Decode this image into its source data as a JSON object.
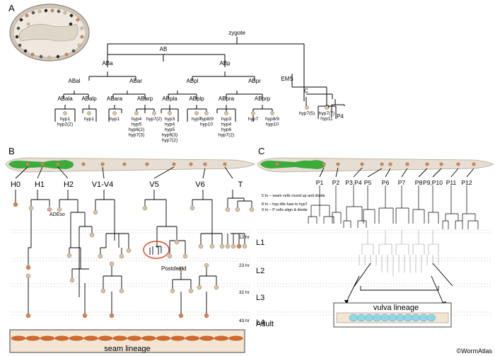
{
  "panels": {
    "a": "A",
    "b": "B",
    "c": "C"
  },
  "tree_a": {
    "zygote": "zygote",
    "AB": "AB",
    "ABa": "ABa",
    "ABp": "ABp",
    "ABal": "ABal",
    "ABar": "ABar",
    "ABpl": "ABpl",
    "ABpr": "ABpr",
    "ABala": "ABala",
    "ABalp": "ABalp",
    "ABara": "ABara",
    "ABarp": "ABarp",
    "ABpla": "ABpla",
    "ABplp": "ABplp",
    "ABpra": "ABpra",
    "ABprp": "ABprp",
    "EMS": "EMS",
    "C": "C",
    "D": "D",
    "P4": "P4",
    "fates": [
      {
        "key": "f1",
        "lines": [
          "hyp1",
          "hyp2(2)"
        ]
      },
      {
        "key": "f2",
        "lines": [
          "hyp1"
        ]
      },
      {
        "key": "f3",
        "lines": [
          "hyp1"
        ]
      },
      {
        "key": "f4",
        "lines": [
          "hyp4",
          "hyp5",
          "hyp6(2)",
          "hyp7(3)"
        ]
      },
      {
        "key": "f5",
        "lines": [
          "hyp7(2)"
        ]
      },
      {
        "key": "f6",
        "lines": [
          "hyp3",
          "hyp4",
          "hyp5",
          "hyp6(3)",
          "hyp7(2)"
        ]
      },
      {
        "key": "f7",
        "lines": [
          "hyp7"
        ]
      },
      {
        "key": "f8",
        "lines": [
          "hyp8/9",
          "hyp10"
        ]
      },
      {
        "key": "f9",
        "lines": [
          "hyp3",
          "hyp4",
          "hyp6",
          "hyp7(2)"
        ]
      },
      {
        "key": "f10",
        "lines": [
          "hyp7"
        ]
      },
      {
        "key": "f11",
        "lines": [
          "hyp8/9",
          "hyp10"
        ]
      },
      {
        "key": "f12",
        "lines": [
          "hyp7(5)"
        ]
      },
      {
        "key": "f13",
        "lines": [
          "hyp7(7)",
          "hyp11"
        ]
      }
    ]
  },
  "panel_b": {
    "cells": [
      "H0",
      "H1",
      "H2",
      "V1-V4",
      "V5",
      "V6",
      "T"
    ],
    "adeso": "ADEso",
    "postdeirid": "Postdeirid",
    "seam_lineage": "seam lineage"
  },
  "stages": [
    "L1",
    "L2",
    "L3",
    "L4",
    "Adult"
  ],
  "times": [
    "12 hr",
    "23 hr",
    "32 hr",
    "43 hr"
  ],
  "panel_c": {
    "cells": [
      "P1",
      "P2",
      "P3,P4",
      "P5",
      "P6",
      "P7",
      "P8",
      "P9,P10",
      "P11",
      "P12"
    ],
    "notes": [
      "5 hr – seam cells round up and divide",
      "8 hr – hyp dlts fuse to hyp7",
      "9 hr – P cells align & divide"
    ],
    "vulva_lineage": "vulva lineage"
  },
  "credit": "©WormAtlas",
  "colors": {
    "worm_body": "#e6ded3",
    "worm_outline": "#b5a998",
    "pharynx_green": "#3cab3c",
    "nucleus_orange": "#d9814f",
    "nucleus_beige": "#d9c3a5",
    "nucleus_pink": "#e8a19a",
    "seam_box": "#f4e4d2",
    "vulva_blue": "#8fd7e6",
    "stage_band": "#dcdcdc",
    "embryo_shell": "#e9e3d9"
  }
}
